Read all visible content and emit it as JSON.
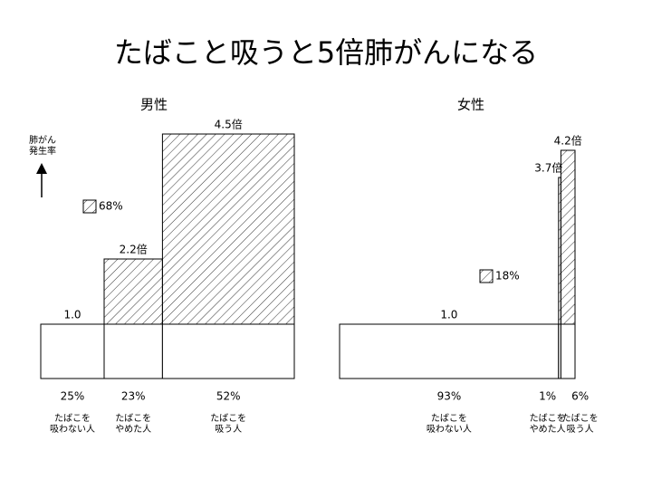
{
  "title": "たばこと吸うと5倍肺がんになる",
  "chart_data": [
    {
      "type": "mekko",
      "subtitle": "男性",
      "ylabel": "肺がん\n発生率",
      "categories": [
        "たばこを\n吸わない人",
        "たばこを\nやめた人",
        "たばこを\n吸う人"
      ],
      "values": [
        1.0,
        2.2,
        4.5
      ],
      "value_labels": [
        "1.0",
        "2.2倍",
        "4.5倍"
      ],
      "widths": [
        25,
        23,
        52
      ],
      "width_labels": [
        "25%",
        "23%",
        "52%"
      ],
      "annotation": "68%",
      "ylim": [
        0,
        5
      ],
      "xlim": [
        0,
        100
      ]
    },
    {
      "type": "mekko",
      "subtitle": "女性",
      "categories": [
        "たばこを\n吸わない人",
        "たばこを\nやめた人",
        "たばこを\n吸う人"
      ],
      "values": [
        1.0,
        3.7,
        4.2
      ],
      "value_labels": [
        "1.0",
        "3.7倍",
        "4.2倍"
      ],
      "widths": [
        93,
        1,
        6
      ],
      "width_labels": [
        "93%",
        "1%",
        "6%"
      ],
      "annotation": "18%",
      "ylim": [
        0,
        5
      ],
      "xlim": [
        0,
        100
      ]
    }
  ]
}
